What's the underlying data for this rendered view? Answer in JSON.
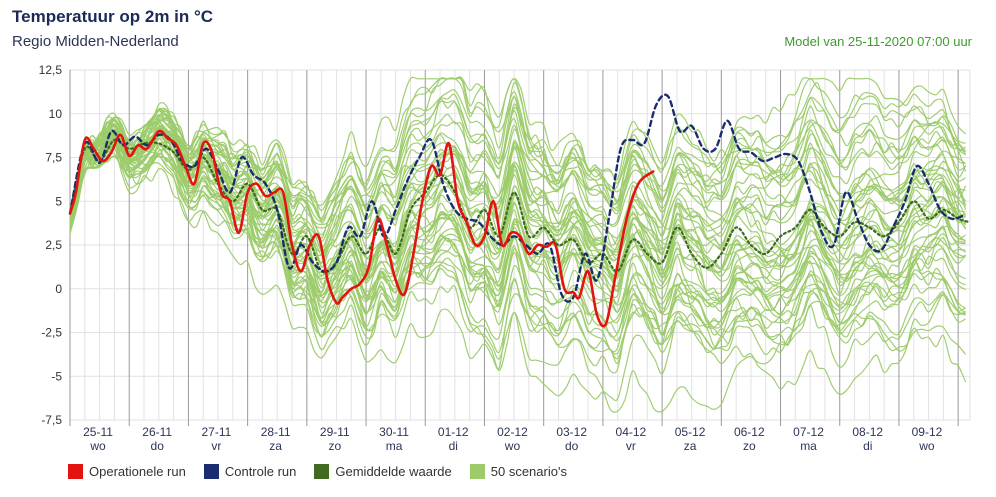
{
  "header": {
    "title": "Temperatuur op 2m in °C",
    "subtitle": "Regio Midden-Nederland",
    "model": "Model van 25-11-2020 07:00 uur"
  },
  "colors": {
    "operational": "#e3140f",
    "control": "#1a2d6e",
    "mean": "#3e6b1f",
    "scenarios": "#9ccb6a",
    "grid": "#e2e2e2",
    "daysep": "#9a9a9a"
  },
  "legend": [
    {
      "label": "Operationele run",
      "color": "#e3140f"
    },
    {
      "label": "Controle run",
      "color": "#1a2d6e"
    },
    {
      "label": "Gemiddelde waarde",
      "color": "#3e6b1f"
    },
    {
      "label": "50 scenario's",
      "color": "#9ccb6a"
    }
  ],
  "chart_data": {
    "type": "line",
    "ylim": [
      -7.5,
      12.5
    ],
    "yticks": [
      "12,5",
      "10",
      "7,5",
      "5",
      "2,5",
      "0",
      "-2,5",
      "-5",
      "-7,5"
    ],
    "ytick_values": [
      12.5,
      10,
      7.5,
      5,
      2.5,
      0,
      -2.5,
      -5,
      -7.5
    ],
    "xlim_days": [
      0,
      15.2
    ],
    "days": [
      {
        "date": "25-11",
        "weekday": "wo"
      },
      {
        "date": "26-11",
        "weekday": "do"
      },
      {
        "date": "27-11",
        "weekday": "vr"
      },
      {
        "date": "28-11",
        "weekday": "za"
      },
      {
        "date": "29-11",
        "weekday": "zo"
      },
      {
        "date": "30-11",
        "weekday": "ma"
      },
      {
        "date": "01-12",
        "weekday": "di"
      },
      {
        "date": "02-12",
        "weekday": "wo"
      },
      {
        "date": "03-12",
        "weekday": "do"
      },
      {
        "date": "04-12",
        "weekday": "vr"
      },
      {
        "date": "05-12",
        "weekday": "za"
      },
      {
        "date": "06-12",
        "weekday": "zo"
      },
      {
        "date": "07-12",
        "weekday": "ma"
      },
      {
        "date": "08-12",
        "weekday": "di"
      },
      {
        "date": "09-12",
        "weekday": "wo"
      }
    ],
    "series": [
      {
        "name": "Operationele run",
        "x": [
          0,
          0.1,
          0.25,
          0.4,
          0.55,
          0.7,
          0.85,
          1.0,
          1.15,
          1.3,
          1.5,
          1.65,
          1.8,
          1.95,
          2.1,
          2.25,
          2.4,
          2.55,
          2.7,
          2.85,
          3.0,
          3.15,
          3.3,
          3.45,
          3.6,
          3.75,
          3.9,
          4.05,
          4.2,
          4.35,
          4.5,
          4.6,
          4.75,
          4.9,
          5.05,
          5.2,
          5.35,
          5.5,
          5.65,
          5.8,
          5.95,
          6.1,
          6.25,
          6.4,
          6.55,
          6.7,
          6.85,
          7.0,
          7.15,
          7.3,
          7.45,
          7.6,
          7.75,
          7.9,
          8.05,
          8.2,
          8.35,
          8.5,
          8.6,
          8.75,
          8.9,
          9.05,
          9.2,
          9.4,
          9.6,
          9.85
        ],
        "y": [
          4.3,
          5.5,
          8.5,
          8.0,
          7.3,
          7.8,
          8.8,
          7.6,
          8.2,
          8.0,
          9.0,
          8.6,
          8.2,
          7.0,
          6.0,
          8.3,
          7.8,
          5.5,
          5.0,
          3.2,
          5.5,
          6.0,
          5.3,
          5.5,
          5.5,
          2.5,
          1.0,
          2.5,
          3.0,
          0.5,
          -0.8,
          -0.5,
          0.0,
          0.3,
          1.3,
          4.0,
          2.5,
          0.5,
          -0.3,
          2.0,
          5.0,
          7.0,
          6.5,
          8.3,
          5.0,
          3.8,
          2.5,
          3.0,
          5.0,
          2.5,
          3.2,
          3.0,
          2.0,
          2.5,
          2.4,
          2.5,
          0.0,
          -0.2,
          -0.5,
          1.0,
          -1.5,
          -2.0,
          0.5,
          4.0,
          6.0,
          6.7
        ]
      },
      {
        "name": "Controle run",
        "x": [
          0,
          0.25,
          0.5,
          0.7,
          0.9,
          1.1,
          1.3,
          1.5,
          1.7,
          1.9,
          2.1,
          2.3,
          2.5,
          2.7,
          2.9,
          3.1,
          3.3,
          3.5,
          3.7,
          3.9,
          4.1,
          4.3,
          4.5,
          4.7,
          4.9,
          5.1,
          5.3,
          5.5,
          5.7,
          5.9,
          6.1,
          6.3,
          6.5,
          6.7,
          6.9,
          7.1,
          7.3,
          7.5,
          7.7,
          7.9,
          8.1,
          8.3,
          8.5,
          8.7,
          8.9,
          9.1,
          9.3,
          9.5,
          9.7,
          9.9,
          10.1,
          10.3,
          10.5,
          10.7,
          10.9,
          11.1,
          11.3,
          11.5,
          11.7,
          11.9,
          12.1,
          12.3,
          12.5,
          12.7,
          12.9,
          13.1,
          13.3,
          13.5,
          13.7,
          13.9,
          14.1,
          14.3,
          14.5,
          14.7,
          14.9,
          15.1
        ],
        "y": [
          4.3,
          8.3,
          7.2,
          9.0,
          8.2,
          8.7,
          8.2,
          8.8,
          8.5,
          7.3,
          7.0,
          8.0,
          6.8,
          5.5,
          7.5,
          6.5,
          6.0,
          4.5,
          1.2,
          2.5,
          1.5,
          1.0,
          1.5,
          3.5,
          3.0,
          5.0,
          3.0,
          4.5,
          6.2,
          7.5,
          8.5,
          6.0,
          4.5,
          4.0,
          3.8,
          3.0,
          2.5,
          3.0,
          2.5,
          2.0,
          2.5,
          -0.3,
          -0.5,
          2.0,
          0.5,
          4.0,
          8.0,
          8.5,
          8.3,
          10.5,
          11.0,
          9.0,
          9.3,
          8.0,
          8.0,
          9.6,
          8.0,
          7.8,
          7.3,
          7.5,
          7.7,
          7.3,
          5.5,
          3.2,
          2.5,
          5.5,
          4.0,
          2.5,
          2.2,
          3.5,
          5.0,
          7.0,
          6.0,
          4.5,
          4.0,
          4.2
        ]
      },
      {
        "name": "Gemiddelde waarde",
        "x": [
          0,
          0.25,
          0.5,
          0.75,
          1.0,
          1.25,
          1.5,
          1.75,
          2.0,
          2.25,
          2.5,
          2.75,
          3.0,
          3.25,
          3.5,
          3.75,
          4.0,
          4.25,
          4.5,
          4.75,
          5.0,
          5.25,
          5.5,
          5.75,
          6.0,
          6.25,
          6.5,
          6.75,
          7.0,
          7.25,
          7.5,
          7.75,
          8.0,
          8.25,
          8.5,
          8.75,
          9.0,
          9.25,
          9.5,
          9.75,
          10.0,
          10.25,
          10.5,
          10.75,
          11.0,
          11.25,
          11.5,
          11.75,
          12.0,
          12.25,
          12.5,
          12.75,
          13.0,
          13.25,
          13.5,
          13.75,
          14.0,
          14.25,
          14.5,
          14.75,
          15.0,
          15.2
        ],
        "y": [
          4.3,
          8.0,
          7.3,
          8.5,
          8.0,
          8.3,
          8.3,
          7.8,
          6.8,
          7.5,
          6.0,
          5.0,
          6.0,
          4.5,
          4.5,
          2.0,
          3.0,
          1.0,
          1.5,
          3.0,
          2.0,
          3.5,
          2.0,
          4.5,
          5.5,
          6.5,
          5.5,
          3.5,
          4.5,
          3.0,
          5.5,
          3.0,
          3.5,
          2.5,
          2.8,
          1.5,
          2.0,
          1.0,
          2.8,
          2.0,
          1.5,
          3.5,
          2.0,
          1.2,
          2.0,
          3.5,
          2.5,
          2.0,
          3.0,
          3.5,
          4.5,
          3.5,
          3.0,
          3.8,
          3.5,
          3.0,
          3.8,
          5.0,
          4.0,
          4.5,
          4.0,
          3.8
        ]
      }
    ],
    "scenario_count": 50,
    "scenario_seed": 7
  }
}
